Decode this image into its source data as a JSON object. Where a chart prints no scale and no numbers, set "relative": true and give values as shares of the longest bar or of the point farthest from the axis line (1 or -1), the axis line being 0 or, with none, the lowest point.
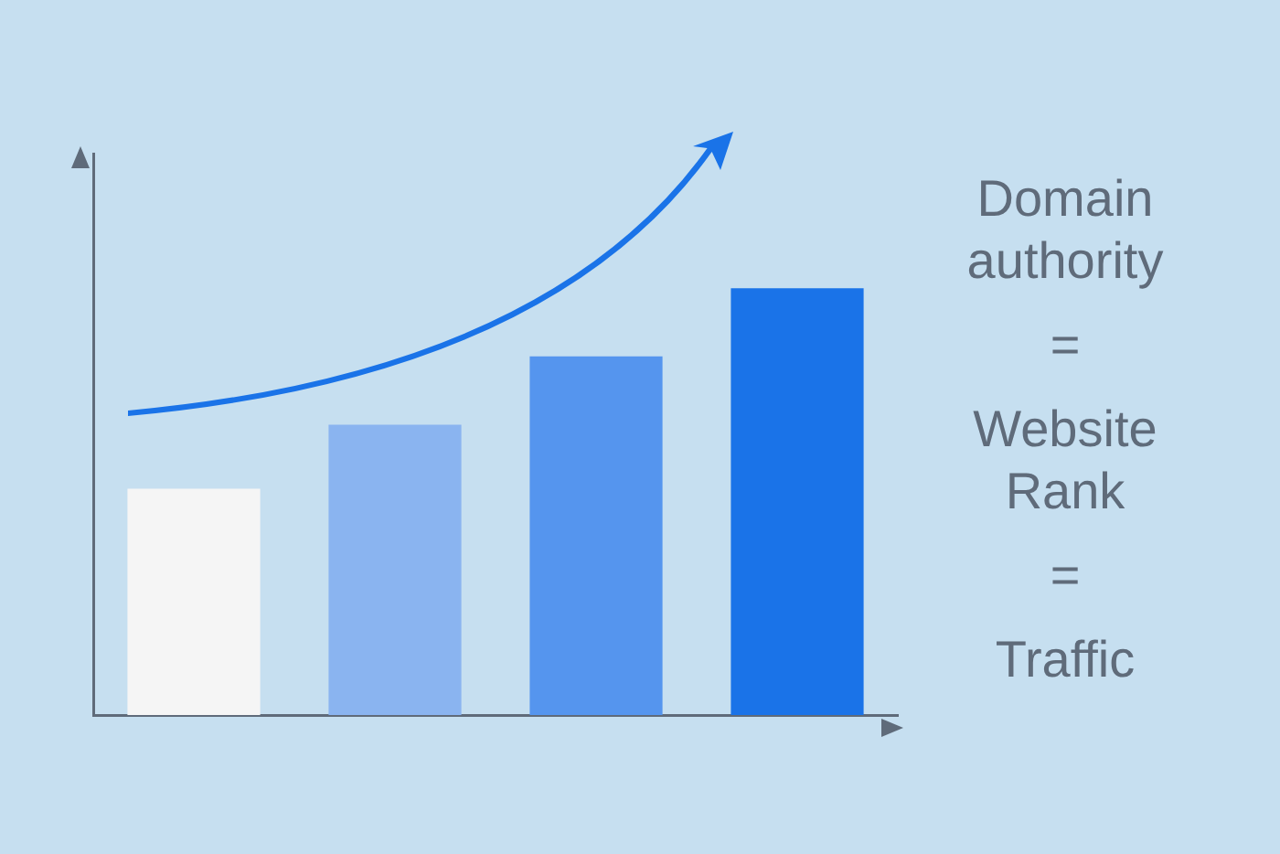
{
  "chart_data": {
    "type": "bar",
    "relative": true,
    "categories": [
      null,
      null,
      null,
      null
    ],
    "values": [
      0.53,
      0.68,
      0.84,
      1
    ],
    "colors": [
      "#f5f5f5",
      "#8ab4f0",
      "#5595ee",
      "#1a73e8"
    ],
    "annotations": [
      "Domain authority",
      "=",
      "Website Rank",
      "=",
      "Traffic"
    ]
  }
}
